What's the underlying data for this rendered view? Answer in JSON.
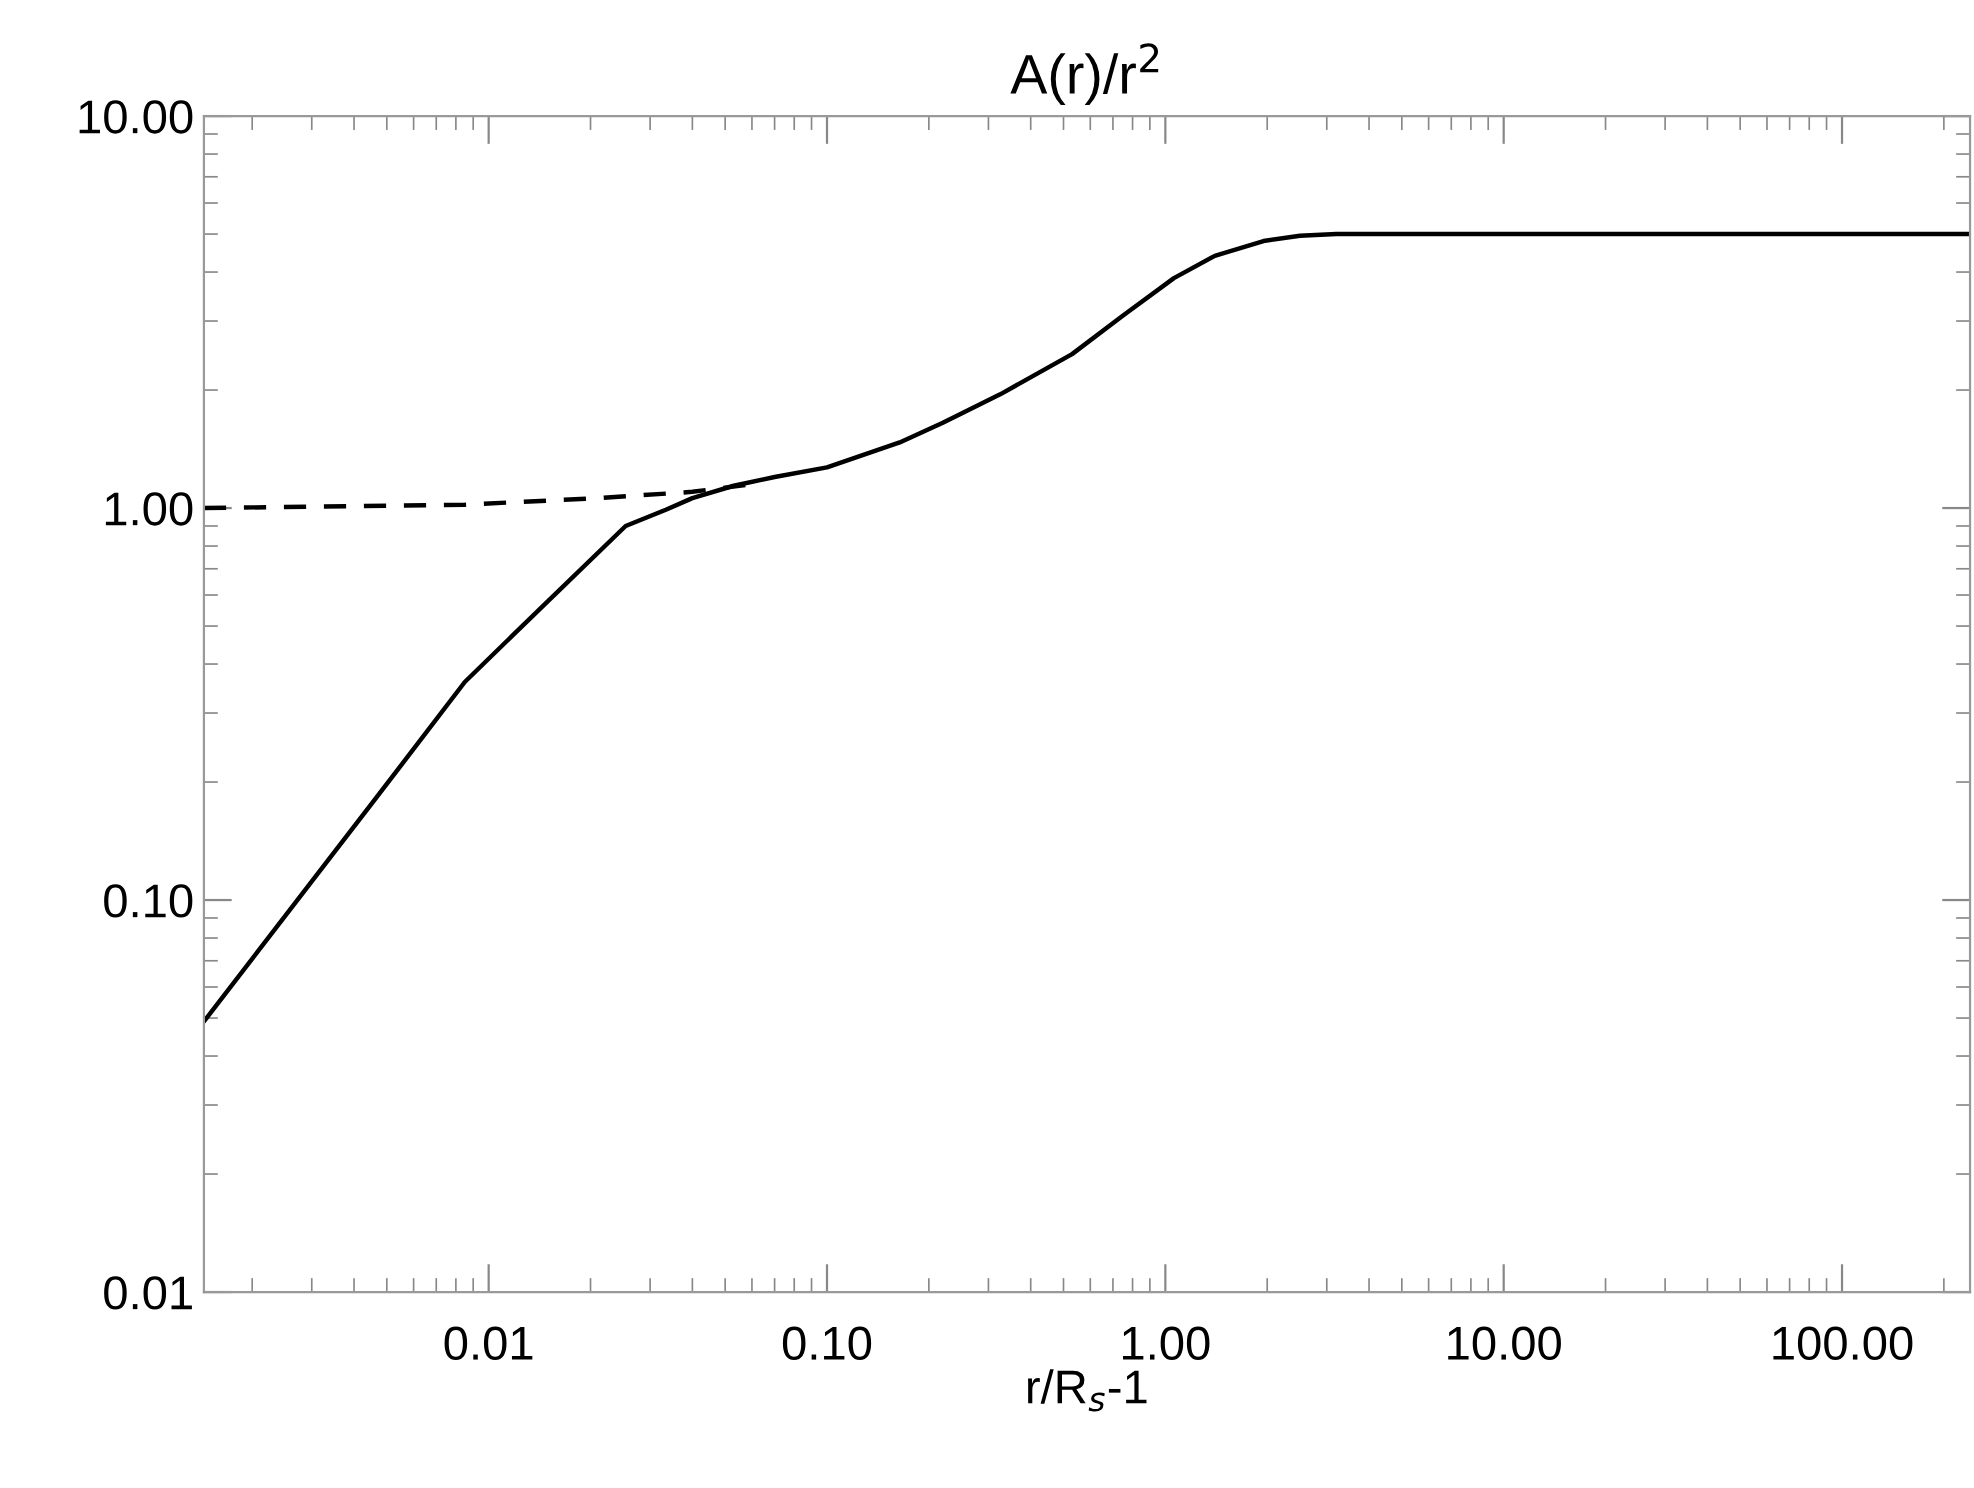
{
  "chart_data": {
    "type": "line",
    "title": "A(r)/r$^{2}$",
    "xlabel": "r/R$_{s}$-1",
    "log": "xy",
    "xlim": [
      0.00144,
      239
    ],
    "ylim": [
      0.01,
      10
    ],
    "xticks": [
      {
        "value": 0.01,
        "label": "0.01"
      },
      {
        "value": 0.1,
        "label": "0.10"
      },
      {
        "value": 1,
        "label": "1.00"
      },
      {
        "value": 10,
        "label": "10.00"
      },
      {
        "value": 100,
        "label": "100.00"
      }
    ],
    "yticks": [
      {
        "value": 0.01,
        "label": "0.01"
      },
      {
        "value": 0.1,
        "label": "0.10"
      },
      {
        "value": 1,
        "label": "1.00"
      },
      {
        "value": 10,
        "label": "10.00"
      }
    ],
    "grid": false,
    "legend": false,
    "series": [
      {
        "color": "#000000",
        "line_style": "solid",
        "x": [
          0.00144,
          0.0046,
          0.0085,
          0.015,
          0.0254,
          0.0334,
          0.04,
          0.053,
          0.07,
          0.1,
          0.164,
          0.22,
          0.325,
          0.53,
          0.75,
          1.06,
          1.4,
          1.95,
          2.5,
          3.2,
          10,
          100,
          239
        ],
        "values": [
          0.049,
          0.18,
          0.36,
          0.58,
          0.9,
          0.99,
          1.06,
          1.14,
          1.2,
          1.27,
          1.47,
          1.65,
          1.95,
          2.47,
          3.1,
          3.86,
          4.4,
          4.8,
          4.95,
          5.0,
          5.0,
          5.0,
          5.0
        ]
      },
      {
        "color": "#000000",
        "line_style": "dashed",
        "x": [
          0.00144,
          0.0085,
          0.021,
          0.04,
          0.06
        ],
        "values": [
          1.0,
          1.02,
          1.06,
          1.1,
          1.15
        ]
      }
    ]
  }
}
